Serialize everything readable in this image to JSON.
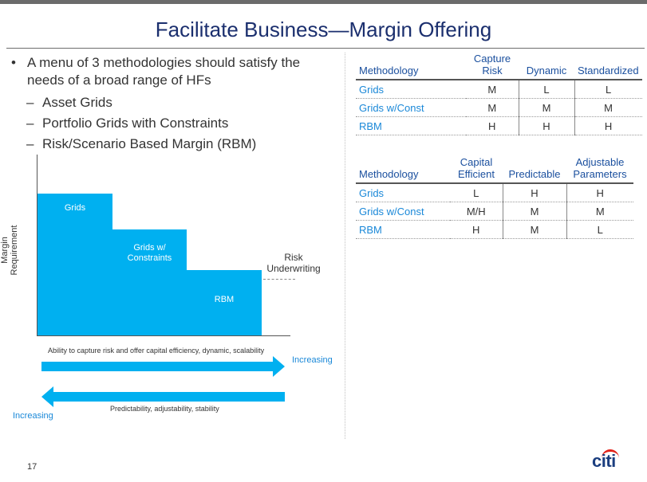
{
  "title": "Facilitate Business—Margin Offering",
  "bullet": {
    "symbol": "•",
    "text": "A menu of 3 methodologies should satisfy the needs of a broad range of HFs",
    "dash": "–",
    "sub_items": [
      "Asset Grids",
      "Portfolio Grids with Constraints",
      "Risk/Scenario Based Margin (RBM)"
    ]
  },
  "table1": {
    "headers": [
      "Methodology",
      "Capture Risk",
      "Dynamic",
      "Standardized"
    ],
    "rows": [
      [
        "Grids",
        "M",
        "L",
        "L"
      ],
      [
        "Grids w/Const",
        "M",
        "M",
        "M"
      ],
      [
        "RBM",
        "H",
        "H",
        "H"
      ]
    ]
  },
  "table2": {
    "headers": [
      "Methodology",
      "Capital Efficient",
      "Predictable",
      "Adjustable Parameters"
    ],
    "rows": [
      [
        "Grids",
        "L",
        "H",
        "H"
      ],
      [
        "Grids w/Const",
        "M/H",
        "M",
        "M"
      ],
      [
        "RBM",
        "H",
        "M",
        "L"
      ]
    ]
  },
  "diagram": {
    "y_label": "Margin Requirement",
    "blocks": [
      "Grids",
      "Grids w/ Constraints",
      "RBM"
    ],
    "risk_label": "Risk Underwriting",
    "arrow_right_caption": "Ability to capture risk and offer capital efficiency, dynamic, scalability",
    "arrow_right_label": "Increasing",
    "arrow_left_caption": "Predictability, adjustability, stability",
    "arrow_left_label": "Increasing",
    "fill_color": "#00b0f0"
  },
  "page_number": "17",
  "logo_text": "citi",
  "colors": {
    "title": "#1b2f6e",
    "header_text": "#1a4f9e",
    "row_label": "#1a88d8",
    "accent": "#00b0f0",
    "logo_arc": "#e2231a"
  }
}
